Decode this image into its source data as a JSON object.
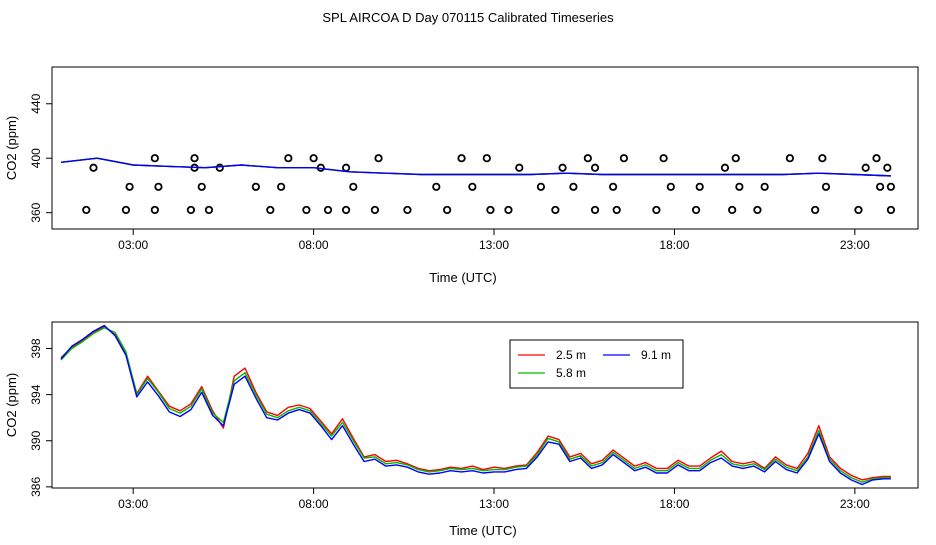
{
  "title": "SPL AIRCOA D  Day 070115  Calibrated Timeseries",
  "colors": {
    "2.5 m": "#ff0000",
    "5.8 m": "#00bb00",
    "9.1 m": "#0000ff",
    "flags": "#000000"
  },
  "chart_data": [
    {
      "type": "line",
      "xlabel": "Time (UTC)",
      "ylabel": "CO2 (ppm)",
      "x_unit": "hours UTC",
      "xlim": [
        0.75,
        24.75
      ],
      "ylim": [
        348,
        467
      ],
      "x_ticks": [
        {
          "value": 3,
          "label": "03:00"
        },
        {
          "value": 8,
          "label": "08:00"
        },
        {
          "value": 13,
          "label": "13:00"
        },
        {
          "value": 18,
          "label": "18:00"
        },
        {
          "value": 23,
          "label": "23:00"
        }
      ],
      "y_ticks": [
        {
          "value": 360,
          "label": "360"
        },
        {
          "value": 400,
          "label": "400"
        },
        {
          "value": 440,
          "label": "440"
        }
      ],
      "grid": false,
      "series": [
        {
          "name": "2.5 m",
          "color": "#ff0000",
          "x": [
            1.0,
            2.0,
            3.0,
            4.0,
            5.0,
            6.0,
            7.0,
            8.0,
            9.0,
            10.0,
            11.0,
            12.0,
            13.0,
            14.0,
            15.0,
            16.0,
            17.0,
            18.0,
            19.0,
            20.0,
            21.0,
            22.0,
            23.0,
            24.0
          ],
          "values": [
            397,
            400,
            395,
            394,
            393,
            395,
            393,
            393,
            390,
            389,
            388,
            388,
            388,
            388,
            389,
            388,
            388,
            388,
            388,
            388,
            388,
            389,
            388,
            387
          ]
        },
        {
          "name": "5.8 m",
          "color": "#00bb00",
          "x": [
            1.0,
            2.0,
            3.0,
            4.0,
            5.0,
            6.0,
            7.0,
            8.0,
            9.0,
            10.0,
            11.0,
            12.0,
            13.0,
            14.0,
            15.0,
            16.0,
            17.0,
            18.0,
            19.0,
            20.0,
            21.0,
            22.0,
            23.0,
            24.0
          ],
          "values": [
            397,
            400,
            395,
            394,
            393,
            395,
            393,
            393,
            390,
            389,
            388,
            388,
            388,
            388,
            389,
            388,
            388,
            388,
            388,
            388,
            388,
            389,
            388,
            387
          ]
        },
        {
          "name": "9.1 m",
          "color": "#0000ff",
          "x": [
            1.0,
            2.0,
            3.0,
            4.0,
            5.0,
            6.0,
            7.0,
            8.0,
            9.0,
            10.0,
            11.0,
            12.0,
            13.0,
            14.0,
            15.0,
            16.0,
            17.0,
            18.0,
            19.0,
            20.0,
            21.0,
            22.0,
            23.0,
            24.0
          ],
          "values": [
            397,
            400,
            395,
            394,
            393,
            395,
            393,
            393,
            390,
            389,
            388,
            388,
            388,
            388,
            389,
            388,
            388,
            388,
            388,
            388,
            388,
            389,
            388,
            387
          ]
        }
      ],
      "flag_points": {
        "x": [
          1.7,
          2.8,
          3.6,
          4.6,
          5.1,
          6.8,
          7.8,
          8.4,
          8.9,
          9.7,
          10.6,
          11.7,
          12.9,
          13.4,
          14.7,
          15.8,
          16.4,
          17.5,
          18.6,
          19.6,
          20.3,
          21.9,
          23.1,
          24.0,
          2.9,
          3.7,
          4.9,
          6.4,
          7.1,
          9.1,
          11.4,
          12.4,
          14.3,
          15.2,
          16.3,
          17.9,
          18.7,
          19.8,
          20.5,
          22.2,
          23.7,
          24.0,
          1.9,
          4.7,
          5.4,
          8.2,
          8.9,
          13.7,
          14.9,
          15.8,
          19.4,
          23.3,
          23.9,
          3.6,
          4.7,
          7.3,
          8.0,
          9.8,
          12.1,
          12.8,
          15.6,
          16.6,
          17.7,
          19.7,
          21.2,
          22.1,
          23.6
        ],
        "values": [
          362,
          362,
          362,
          362,
          362,
          362,
          362,
          362,
          362,
          362,
          362,
          362,
          362,
          362,
          362,
          362,
          362,
          362,
          362,
          362,
          362,
          362,
          362,
          362,
          379,
          379,
          379,
          379,
          379,
          379,
          379,
          379,
          379,
          379,
          379,
          379,
          379,
          379,
          379,
          379,
          379,
          379,
          393,
          393,
          393,
          393,
          393,
          393,
          393,
          393,
          393,
          393,
          393,
          400,
          400,
          400,
          400,
          400,
          400,
          400,
          400,
          400,
          400,
          400,
          400,
          400,
          400
        ]
      }
    },
    {
      "type": "line",
      "xlabel": "Time (UTC)",
      "ylabel": "CO2 (ppm)",
      "x_unit": "hours UTC",
      "xlim": [
        0.75,
        24.75
      ],
      "ylim": [
        385.9,
        400.3
      ],
      "x_ticks": [
        {
          "value": 3,
          "label": "03:00"
        },
        {
          "value": 8,
          "label": "08:00"
        },
        {
          "value": 13,
          "label": "13:00"
        },
        {
          "value": 18,
          "label": "18:00"
        },
        {
          "value": 23,
          "label": "23:00"
        }
      ],
      "y_ticks": [
        {
          "value": 386,
          "label": "386"
        },
        {
          "value": 390,
          "label": "390"
        },
        {
          "value": 394,
          "label": "394"
        },
        {
          "value": 398,
          "label": "398"
        }
      ],
      "grid": false,
      "legend": {
        "placement": "top-center",
        "entries": [
          {
            "label": "2.5 m",
            "color": "#ff0000"
          },
          {
            "label": "9.1 m",
            "color": "#0000ff"
          },
          {
            "label": "5.8 m",
            "color": "#00bb00"
          }
        ]
      },
      "series": [
        {
          "name": "2.5 m",
          "color": "#ff0000",
          "x": [
            1.0,
            1.3,
            1.6,
            1.9,
            2.2,
            2.5,
            2.8,
            3.1,
            3.4,
            3.7,
            4.0,
            4.3,
            4.6,
            4.9,
            5.2,
            5.5,
            5.8,
            6.1,
            6.4,
            6.7,
            7.0,
            7.3,
            7.6,
            7.9,
            8.2,
            8.5,
            8.8,
            9.1,
            9.4,
            9.7,
            10.0,
            10.3,
            10.6,
            10.9,
            11.2,
            11.5,
            11.8,
            12.1,
            12.4,
            12.7,
            13.0,
            13.3,
            13.6,
            13.9,
            14.2,
            14.5,
            14.8,
            15.1,
            15.4,
            15.7,
            16.0,
            16.3,
            16.6,
            16.9,
            17.2,
            17.5,
            17.8,
            18.1,
            18.4,
            18.7,
            19.0,
            19.3,
            19.6,
            19.9,
            20.2,
            20.5,
            20.8,
            21.1,
            21.4,
            21.7,
            22.0,
            22.3,
            22.6,
            22.9,
            23.2,
            23.5,
            23.8,
            24.0
          ],
          "values": [
            397.2,
            398.1,
            398.7,
            399.4,
            399.9,
            399.2,
            397.6,
            394.1,
            395.6,
            394.3,
            393.0,
            392.6,
            393.2,
            394.7,
            392.6,
            391.1,
            395.6,
            396.3,
            394.2,
            392.5,
            392.2,
            392.9,
            393.1,
            392.8,
            391.7,
            390.6,
            391.9,
            390.2,
            388.6,
            388.8,
            388.2,
            388.3,
            388.0,
            387.6,
            387.4,
            387.5,
            387.7,
            387.6,
            387.8,
            387.5,
            387.7,
            387.6,
            387.8,
            387.9,
            389.0,
            390.4,
            390.1,
            388.6,
            388.9,
            388.0,
            388.3,
            389.2,
            388.5,
            387.8,
            388.1,
            387.6,
            387.6,
            388.3,
            387.8,
            387.8,
            388.5,
            389.1,
            388.2,
            388.0,
            388.2,
            387.6,
            388.6,
            387.9,
            387.6,
            388.9,
            391.3,
            388.6,
            387.6,
            387.0,
            386.6,
            386.8,
            386.9,
            386.9
          ]
        },
        {
          "name": "5.8 m",
          "color": "#00bb00",
          "x": [
            1.0,
            1.3,
            1.6,
            1.9,
            2.2,
            2.5,
            2.8,
            3.1,
            3.4,
            3.7,
            4.0,
            4.3,
            4.6,
            4.9,
            5.2,
            5.5,
            5.8,
            6.1,
            6.4,
            6.7,
            7.0,
            7.3,
            7.6,
            7.9,
            8.2,
            8.5,
            8.8,
            9.1,
            9.4,
            9.7,
            10.0,
            10.3,
            10.6,
            10.9,
            11.2,
            11.5,
            11.8,
            12.1,
            12.4,
            12.7,
            13.0,
            13.3,
            13.6,
            13.9,
            14.2,
            14.5,
            14.8,
            15.1,
            15.4,
            15.7,
            16.0,
            16.3,
            16.6,
            16.9,
            17.2,
            17.5,
            17.8,
            18.1,
            18.4,
            18.7,
            19.0,
            19.3,
            19.6,
            19.9,
            20.2,
            20.5,
            20.8,
            21.1,
            21.4,
            21.7,
            22.0,
            22.3,
            22.6,
            22.9,
            23.2,
            23.5,
            23.8,
            24.0
          ],
          "values": [
            397.0,
            398.0,
            398.6,
            399.3,
            399.8,
            399.4,
            397.7,
            394.0,
            395.4,
            394.2,
            392.8,
            392.4,
            393.0,
            394.5,
            392.4,
            391.6,
            395.2,
            395.9,
            394.0,
            392.3,
            392.0,
            392.6,
            392.9,
            392.6,
            391.5,
            390.4,
            391.6,
            390.0,
            388.5,
            388.6,
            388.0,
            388.1,
            387.9,
            387.5,
            387.3,
            387.4,
            387.6,
            387.5,
            387.6,
            387.4,
            387.5,
            387.5,
            387.7,
            387.8,
            388.8,
            390.2,
            389.9,
            388.4,
            388.7,
            387.8,
            388.1,
            389.0,
            388.3,
            387.6,
            387.9,
            387.4,
            387.4,
            388.1,
            387.6,
            387.6,
            388.3,
            388.8,
            388.0,
            387.8,
            388.0,
            387.5,
            388.4,
            387.7,
            387.4,
            388.6,
            390.9,
            388.4,
            387.4,
            386.8,
            386.4,
            386.7,
            386.8,
            386.8
          ]
        },
        {
          "name": "9.1 m",
          "color": "#0000ff",
          "x": [
            1.0,
            1.3,
            1.6,
            1.9,
            2.2,
            2.5,
            2.8,
            3.1,
            3.4,
            3.7,
            4.0,
            4.3,
            4.6,
            4.9,
            5.2,
            5.5,
            5.8,
            6.1,
            6.4,
            6.7,
            7.0,
            7.3,
            7.6,
            7.9,
            8.2,
            8.5,
            8.8,
            9.1,
            9.4,
            9.7,
            10.0,
            10.3,
            10.6,
            10.9,
            11.2,
            11.5,
            11.8,
            12.1,
            12.4,
            12.7,
            13.0,
            13.3,
            13.6,
            13.9,
            14.2,
            14.5,
            14.8,
            15.1,
            15.4,
            15.7,
            16.0,
            16.3,
            16.6,
            16.9,
            17.2,
            17.5,
            17.8,
            18.1,
            18.4,
            18.7,
            19.0,
            19.3,
            19.6,
            19.9,
            20.2,
            20.5,
            20.8,
            21.1,
            21.4,
            21.7,
            22.0,
            22.3,
            22.6,
            22.9,
            23.2,
            23.5,
            23.8,
            24.0
          ],
          "values": [
            397.1,
            398.2,
            398.8,
            399.5,
            400.0,
            399.1,
            397.4,
            393.8,
            395.1,
            393.9,
            392.5,
            392.1,
            392.7,
            394.2,
            392.2,
            391.3,
            394.9,
            395.6,
            393.7,
            392.0,
            391.8,
            392.4,
            392.7,
            392.4,
            391.3,
            390.1,
            391.3,
            389.7,
            388.2,
            388.4,
            387.8,
            387.9,
            387.7,
            387.3,
            387.1,
            387.2,
            387.4,
            387.3,
            387.4,
            387.2,
            387.3,
            387.3,
            387.5,
            387.6,
            388.6,
            389.9,
            389.7,
            388.2,
            388.5,
            387.6,
            387.9,
            388.8,
            388.1,
            387.4,
            387.7,
            387.2,
            387.2,
            387.9,
            387.4,
            387.4,
            388.1,
            388.5,
            387.8,
            387.6,
            387.8,
            387.3,
            388.2,
            387.5,
            387.2,
            388.4,
            390.6,
            388.2,
            387.2,
            386.6,
            386.2,
            386.6,
            386.7,
            386.7
          ]
        }
      ]
    }
  ]
}
